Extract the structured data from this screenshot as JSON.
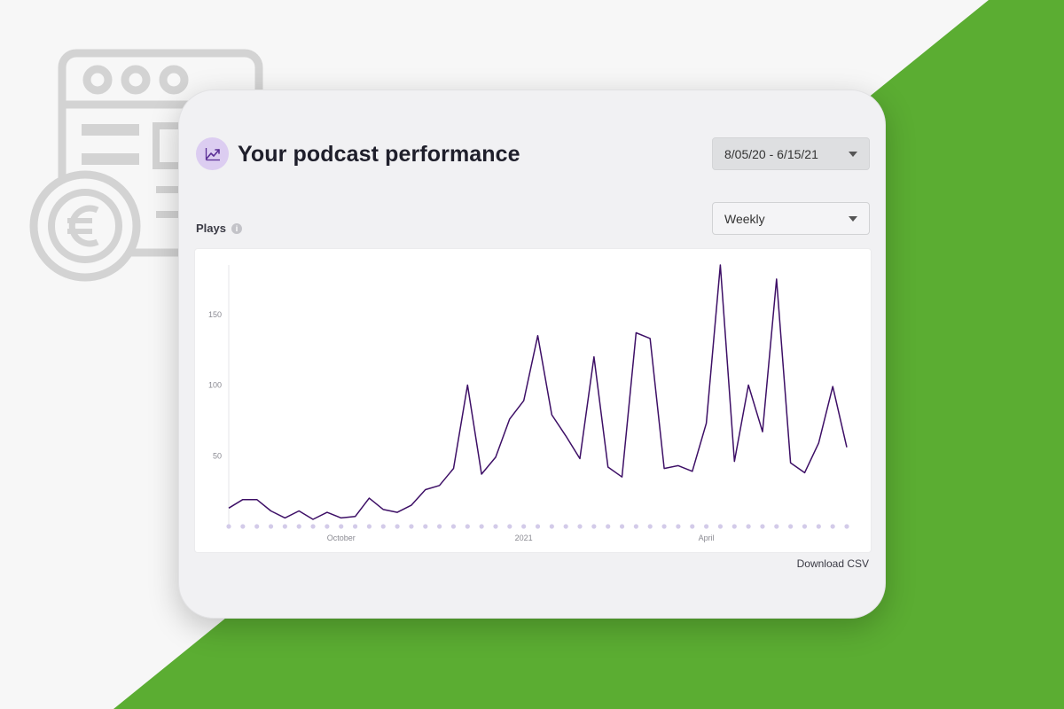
{
  "colors": {
    "background": "#f7f7f7",
    "green": "#5bad32",
    "accent_purple": "#3d0f66",
    "icon_bg": "#dccdf1",
    "dot": "#d3cbe9"
  },
  "decor": {
    "icon": "browser-window-euro-icon"
  },
  "header": {
    "icon": "trending-up-icon",
    "title": "Your podcast performance"
  },
  "filters": {
    "date_range": "8/05/20 - 6/15/21",
    "frequency": "Weekly"
  },
  "metric": {
    "label": "Plays",
    "info_icon": "info-icon",
    "info_glyph": "i"
  },
  "actions": {
    "download": "Download CSV"
  },
  "chart_data": {
    "type": "line",
    "title": "",
    "xlabel": "",
    "ylabel": "",
    "ylim": [
      0,
      185
    ],
    "y_ticks": [
      50,
      100,
      150
    ],
    "x_tick_labels": [
      {
        "label": "October",
        "index": 8
      },
      {
        "label": "2021",
        "index": 21
      },
      {
        "label": "April",
        "index": 34
      }
    ],
    "grid": false,
    "series": [
      {
        "color": "#3d0f66",
        "values": [
          13,
          19,
          19,
          11,
          6,
          11,
          5,
          10,
          6,
          7,
          20,
          12,
          10,
          15,
          26,
          29,
          41,
          100,
          37,
          49,
          76,
          89,
          135,
          79,
          64,
          48,
          120,
          42,
          35,
          137,
          133,
          41,
          43,
          39,
          73,
          185,
          46,
          100,
          67,
          175,
          45,
          38,
          59,
          99,
          56
        ]
      }
    ]
  }
}
